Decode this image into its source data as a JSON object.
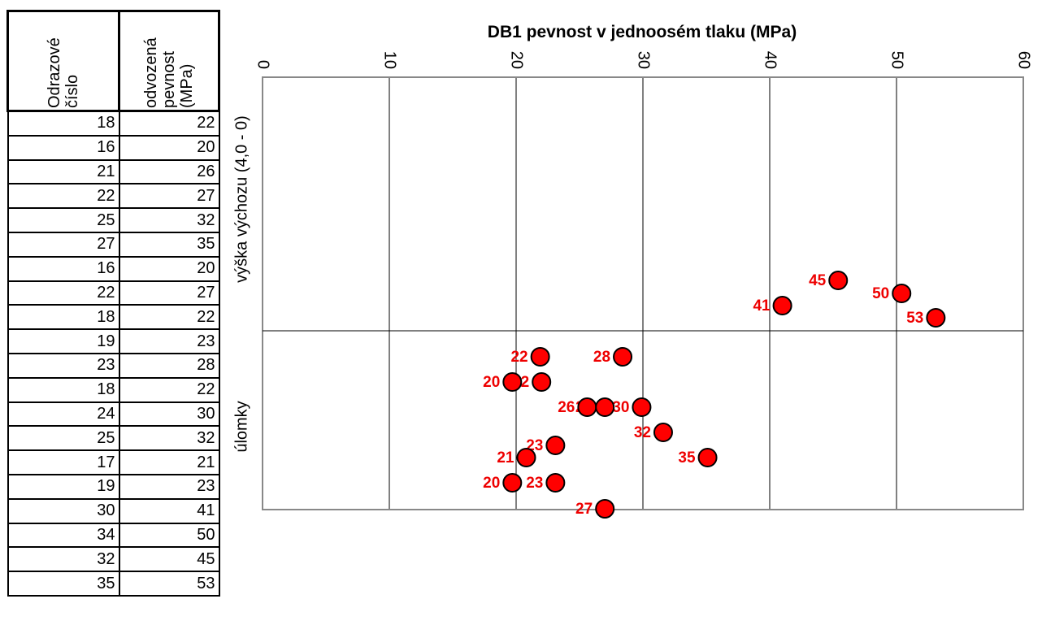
{
  "table": {
    "header": [
      "Odrazové číslo",
      "odvozená pevnost (MPa)"
    ],
    "rows": [
      [
        18,
        22
      ],
      [
        16,
        20
      ],
      [
        21,
        26
      ],
      [
        22,
        27
      ],
      [
        25,
        32
      ],
      [
        27,
        35
      ],
      [
        16,
        20
      ],
      [
        22,
        27
      ],
      [
        18,
        22
      ],
      [
        19,
        23
      ],
      [
        23,
        28
      ],
      [
        18,
        22
      ],
      [
        24,
        30
      ],
      [
        25,
        32
      ],
      [
        17,
        21
      ],
      [
        19,
        23
      ],
      [
        30,
        41
      ],
      [
        34,
        50
      ],
      [
        32,
        45
      ],
      [
        35,
        53
      ]
    ]
  },
  "chart_data": {
    "type": "dot",
    "title": "DB1 pevnost v jednoosém tlaku (MPa)",
    "categories": [
      "výška výchozu (4,0 - 0)",
      "úlomky"
    ],
    "values": [
      [
        45.4,
        50.4,
        41.0,
        53.1
      ],
      [
        21.9,
        28.4,
        19.7,
        22.0,
        25.6,
        27.0,
        29.9,
        31.6,
        23.1,
        35.1,
        20.8,
        19.7,
        23.1,
        27.0
      ]
    ],
    "value_labels": [
      [
        "45",
        "50",
        "41",
        "53"
      ],
      [
        "22",
        "28",
        "20",
        "22",
        "26",
        "27",
        "30",
        "32",
        "23",
        "35",
        "21",
        "20",
        "23",
        "27"
      ]
    ],
    "color": "#ff0000",
    "label_color": "#ee0000",
    "xlim": [
      0,
      60
    ],
    "xticks": [
      0,
      10,
      20,
      30,
      40,
      50,
      60
    ],
    "grid": true
  }
}
